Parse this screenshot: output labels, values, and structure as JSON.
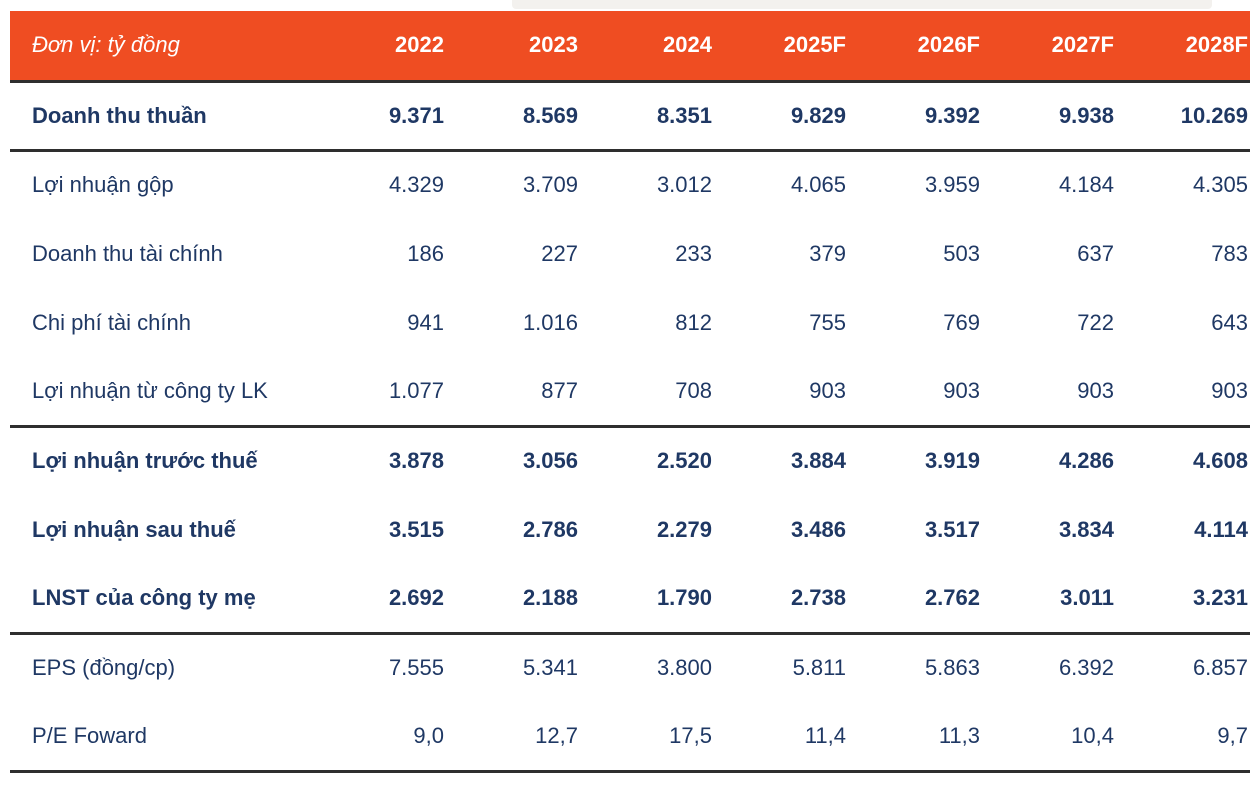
{
  "colors": {
    "header_bg": "#EF4D22",
    "header_text": "#FFFFFF",
    "body_text": "#1F3864",
    "rule_line": "#2E2E2E"
  },
  "table": {
    "header": {
      "label": "Đơn vị: tỷ đồng",
      "years": [
        "2022",
        "2023",
        "2024",
        "2025F",
        "2026F",
        "2027F",
        "2028F"
      ]
    },
    "rows": [
      {
        "label": "Doanh thu thuần",
        "bold": true,
        "values": [
          "9.371",
          "8.569",
          "8.351",
          "9.829",
          "9.392",
          "9.938",
          "10.269"
        ]
      },
      {
        "label": "Lợi nhuận gộp",
        "bold": false,
        "values": [
          "4.329",
          "3.709",
          "3.012",
          "4.065",
          "3.959",
          "4.184",
          "4.305"
        ]
      },
      {
        "label": "Doanh thu tài chính",
        "bold": false,
        "values": [
          "186",
          "227",
          "233",
          "379",
          "503",
          "637",
          "783"
        ]
      },
      {
        "label": "Chi phí tài chính",
        "bold": false,
        "values": [
          "941",
          "1.016",
          "812",
          "755",
          "769",
          "722",
          "643"
        ]
      },
      {
        "label": "Lợi nhuận từ công ty LK",
        "bold": false,
        "values": [
          "1.077",
          "877",
          "708",
          "903",
          "903",
          "903",
          "903"
        ]
      },
      {
        "label": "Lợi nhuận trước thuế",
        "bold": true,
        "values": [
          "3.878",
          "3.056",
          "2.520",
          "3.884",
          "3.919",
          "4.286",
          "4.608"
        ]
      },
      {
        "label": "Lợi nhuận sau thuế",
        "bold": true,
        "values": [
          "3.515",
          "2.786",
          "2.279",
          "3.486",
          "3.517",
          "3.834",
          "4.114"
        ]
      },
      {
        "label": "LNST của công ty mẹ",
        "bold": true,
        "values": [
          "2.692",
          "2.188",
          "1.790",
          "2.738",
          "2.762",
          "3.011",
          "3.231"
        ]
      },
      {
        "label": "EPS (đồng/cp)",
        "bold": false,
        "values": [
          "7.555",
          "5.341",
          "3.800",
          "5.811",
          "5.863",
          "6.392",
          "6.857"
        ]
      },
      {
        "label": "P/E Foward",
        "bold": false,
        "values": [
          "9,0",
          "12,7",
          "17,5",
          "11,4",
          "11,3",
          "10,4",
          "9,7"
        ]
      }
    ]
  }
}
